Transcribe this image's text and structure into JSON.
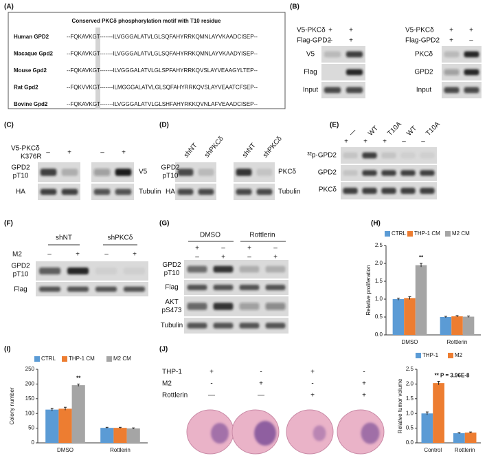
{
  "a": {
    "label": "(A)",
    "title": "Conserved PKCδ phosphorylation motif with T10 residue",
    "rows": [
      {
        "name": "Human GPD2",
        "sequence": "--FQKAVKGT-------ILVGGGALATVLGLSQFAHYRRKQMNLAYVKAADCISEP--"
      },
      {
        "name": "Macaque Gpd2",
        "sequence": "--FQKAVKGT-------ILVGGGALATVLGLSQFAHYRRKQMNLAYVKAADYISEP--"
      },
      {
        "name": "Mouse Gpd2",
        "sequence": "--FQKAVKGT-------ILVGGGALATVLGLSPFAHYRRKQVSLAYVEAAGYLTEP--"
      },
      {
        "name": "Rat Gpd2",
        "sequence": "--FQKVVKGT-------ILMGGGALATVLGLSQFAHYRRKQVSLAYVEAATCFSEP--"
      },
      {
        "name": "Bovine Gpd2",
        "sequence": "--FQKAVKGT-------ILVGGGALATVLGLSHFAHYRKKQVNLAFVEAADCISEP--"
      }
    ]
  },
  "b": {
    "label": "(B)",
    "blots": [
      {
        "conditions": [
          {
            "name": "V5-PKCδ",
            "signs": [
              "+",
              "+"
            ]
          },
          {
            "name": "Flag-GPD2",
            "signs": [
              "–",
              "+"
            ]
          }
        ],
        "rows": [
          "V5",
          "Flag",
          "Input"
        ]
      },
      {
        "conditions": [
          {
            "name": "V5-PKCδ",
            "signs": [
              "+",
              "+"
            ]
          },
          {
            "name": "Flag-GPD2",
            "signs": [
              "+",
              "–"
            ]
          }
        ],
        "rows": [
          "PKCδ",
          "GPD2",
          "Input"
        ]
      }
    ]
  },
  "c": {
    "label": "(C)",
    "condition": [
      "V5-PKCδ",
      "K376R"
    ],
    "signs": [
      "–",
      "+",
      "–",
      "+"
    ],
    "left_rows": [
      [
        "GPD2",
        "pT10"
      ],
      [
        "HA"
      ]
    ],
    "right_rows": [
      "V5",
      "Tubulin"
    ]
  },
  "d": {
    "label": "(D)",
    "lanes": [
      "shNT",
      "shPKCδ",
      "shNT",
      "shPKCδ"
    ],
    "left_rows": [
      [
        "GPD2",
        "pT10"
      ],
      [
        "HA"
      ]
    ],
    "right_rows": [
      "PKCδ",
      "Tubulin"
    ]
  },
  "e": {
    "label": "(E)",
    "lanes": [
      "—",
      "WT",
      "T10A",
      "WT",
      "T10A"
    ],
    "signs": [
      "+",
      "+",
      "+",
      "–",
      "–"
    ],
    "rows": [
      "³²p-GPD2",
      "GPD2",
      "PKCδ"
    ]
  },
  "f": {
    "label": "(F)",
    "groups": [
      "shNT",
      "shPKCδ"
    ],
    "condition": "M2",
    "signs": [
      "–",
      "+",
      "–",
      "+"
    ],
    "rows": [
      [
        "GPD2",
        "pT10"
      ],
      [
        "Flag"
      ]
    ]
  },
  "g": {
    "label": "(G)",
    "groups": [
      "DMSO",
      "Rottlerin"
    ],
    "signs": [
      [
        "+",
        "–",
        "+",
        "–"
      ],
      [
        "–",
        "+",
        "–",
        "+"
      ]
    ],
    "rows": [
      [
        "GPD2",
        "pT10"
      ],
      [
        "Flag"
      ],
      [
        "AKT",
        "pS473"
      ],
      [
        "Tubulin"
      ]
    ]
  },
  "h": {
    "label": "(H)",
    "chart": {
      "type": "bar",
      "y_label": "Relative proliferation",
      "categories": [
        "DMSO",
        "Rottlerin"
      ],
      "series": [
        {
          "name": "CTRL",
          "color": "#5b9bd5",
          "values": [
            1.0,
            0.5
          ],
          "errors": [
            0.03,
            0.02
          ]
        },
        {
          "name": "THP-1 CM",
          "color": "#ed7d31",
          "values": [
            1.03,
            0.52
          ],
          "errors": [
            0.04,
            0.02
          ]
        },
        {
          "name": "M2 CM",
          "color": "#a5a5a5",
          "values": [
            1.95,
            0.51
          ],
          "errors": [
            0.05,
            0.02
          ]
        }
      ],
      "ylim": [
        0,
        2.5
      ],
      "yticks": [
        {
          "value": 0,
          "label": "0.0"
        },
        {
          "value": 0.5,
          "label": "0.5"
        },
        {
          "value": 1,
          "label": "1.0"
        },
        {
          "value": 1.5,
          "label": "1.5"
        },
        {
          "value": 2,
          "label": "2.0"
        },
        {
          "value": 2.5,
          "label": "2.5"
        }
      ],
      "annotation": "**"
    }
  },
  "i": {
    "label": "(I)",
    "chart": {
      "type": "bar",
      "y_label": "Colony number",
      "categories": [
        "DMSO",
        "Rottlerin"
      ],
      "series": [
        {
          "name": "CTRL",
          "color": "#5b9bd5",
          "values": [
            113,
            51
          ],
          "errors": [
            5,
            2
          ]
        },
        {
          "name": "THP-1 CM",
          "color": "#ed7d31",
          "values": [
            116,
            51
          ],
          "errors": [
            5,
            2
          ]
        },
        {
          "name": "M2 CM",
          "color": "#a5a5a5",
          "values": [
            196,
            49
          ],
          "errors": [
            4,
            2
          ]
        }
      ],
      "ylim": [
        0,
        250
      ],
      "yticks": [
        0,
        50,
        100,
        150,
        200,
        250
      ],
      "annotation": "**"
    }
  },
  "j": {
    "label": "(J)",
    "conditions": [
      {
        "name": "THP-1",
        "signs": [
          "+",
          "-",
          "+",
          "-"
        ]
      },
      {
        "name": "M2",
        "signs": [
          "-",
          "+",
          "-",
          "+"
        ]
      },
      {
        "name": "Rottlerin",
        "signs": [
          "—",
          "—",
          "+",
          "+"
        ]
      }
    ],
    "chart": {
      "type": "bar",
      "y_label": "Relative tumor volume",
      "categories": [
        "Control",
        "Rottlerin"
      ],
      "series": [
        {
          "name": "THP-1",
          "color": "#5b9bd5",
          "values": [
            1.0,
            0.33
          ],
          "errors": [
            0.05,
            0.02
          ]
        },
        {
          "name": "M2",
          "color": "#ed7d31",
          "values": [
            2.03,
            0.35
          ],
          "errors": [
            0.06,
            0.02
          ]
        }
      ],
      "ylim": [
        0,
        2.5
      ],
      "yticks": [
        {
          "value": 0,
          "label": "0.0"
        },
        {
          "value": 0.5,
          "label": "0.5"
        },
        {
          "value": 1,
          "label": "1.0"
        },
        {
          "value": 1.5,
          "label": "1.5"
        },
        {
          "value": 2,
          "label": "2.0"
        },
        {
          "value": 2.5,
          "label": "2.5"
        }
      ],
      "annotation": "** P = 3.96E-8"
    }
  }
}
